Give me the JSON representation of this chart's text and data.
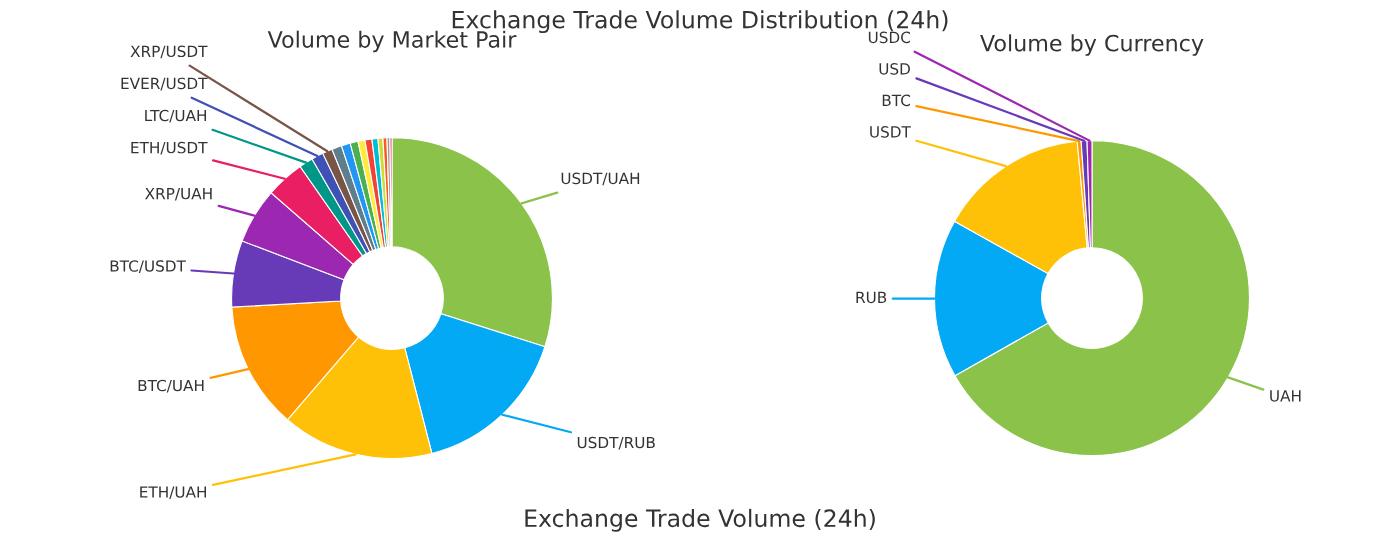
{
  "chart_data": [
    {
      "type": "donut",
      "title": "Volume by Market Pair",
      "annotations": [
        "Exchange Trade Volume Distribution (24h)",
        "Exchange Trade Volume (24h)"
      ],
      "categories": [
        "USDT/UAH",
        "USDT/RUB",
        "ETH/UAH",
        "BTC/UAH",
        "BTC/USDT",
        "XRP/UAH",
        "ETH/USDT",
        "LTC/UAH",
        "EVER/USDT",
        "XRP/USDT",
        null,
        null,
        null,
        null,
        null,
        null,
        null,
        null,
        null,
        null
      ],
      "values": [
        29.9,
        16.1,
        15.3,
        12.8,
        6.7,
        5.6,
        3.9,
        1.4,
        1.2,
        1.0,
        1.0,
        0.9,
        0.8,
        0.7,
        0.7,
        0.6,
        0.5,
        0.4,
        0.3,
        0.2
      ],
      "colors": [
        "#8bc34a",
        "#03a9f4",
        "#ffc107",
        "#ff9800",
        "#673ab7",
        "#9c27b0",
        "#e91e63",
        "#009688",
        "#3f51b5",
        "#795548",
        "#607d8b",
        "#2196f3",
        "#4caf50",
        "#ffeb3b",
        "#f44336",
        "#00bcd4",
        "#cddc39",
        "#ff5722",
        "#9e9e9e",
        "#e91e63"
      ]
    },
    {
      "type": "donut",
      "title": "Volume by Currency",
      "categories": [
        "UAH",
        "RUB",
        "USDT",
        "BTC",
        "USD",
        "USDC"
      ],
      "values": [
        66.8,
        16.3,
        15.4,
        0.4,
        0.6,
        0.5
      ],
      "colors": [
        "#8bc34a",
        "#03a9f4",
        "#ffc107",
        "#ff9800",
        "#673ab7",
        "#9c27b0"
      ]
    }
  ]
}
